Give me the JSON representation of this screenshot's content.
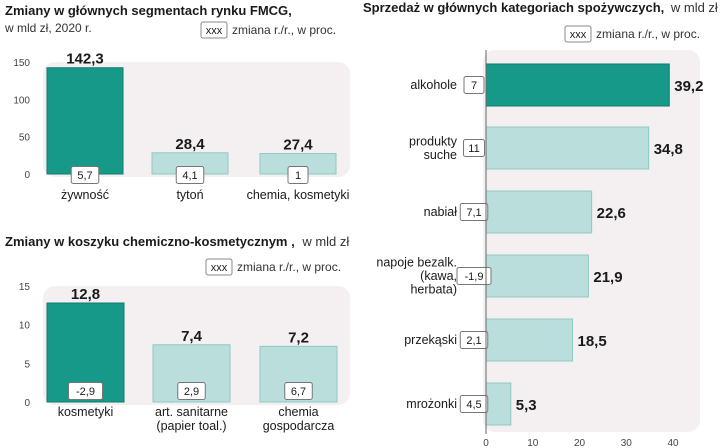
{
  "colors": {
    "highlight": "#17998a",
    "highlight_stroke": "#0e7a6e",
    "normal": "#b9dedb",
    "normal_stroke": "#8fc9c4",
    "plot_bg": "#f4eff1",
    "axis": "#666666"
  },
  "legend": {
    "box_label": "xxx",
    "text": "zmiana r./r., w proc."
  },
  "chart_data": [
    {
      "id": "fmcg",
      "type": "bar",
      "title": "Zmiany w głównych segmentach rynku FMCG,",
      "subtitle": "w mld zł, 2020 r.",
      "categories": [
        "żywność",
        "tytoń",
        "chemia, kosmetyki"
      ],
      "values": [
        142.3,
        28.4,
        27.4
      ],
      "value_labels": [
        "142,3",
        "28,4",
        "27,4"
      ],
      "changes": [
        "5,7",
        "4,1",
        "1"
      ],
      "highlight_index": 0,
      "ylim": [
        0,
        150
      ],
      "yticks": [
        0,
        50,
        100,
        150
      ]
    },
    {
      "id": "chem",
      "type": "bar",
      "title": "Zmiany w koszyku chemiczno-kosmetycznym ,",
      "title_suffix": "w mld zł",
      "categories": [
        "kosmetyki",
        "art. sanitarne|(papier toal.)",
        "chemia|gospodarcza"
      ],
      "values": [
        12.8,
        7.4,
        7.2
      ],
      "value_labels": [
        "12,8",
        "7,4",
        "7,2"
      ],
      "changes": [
        "-2,9",
        "2,9",
        "6,7"
      ],
      "highlight_index": 0,
      "ylim": [
        0,
        15
      ],
      "yticks": [
        0,
        5,
        10,
        15
      ]
    },
    {
      "id": "food",
      "type": "bar",
      "orientation": "horizontal",
      "title": "Sprzedaż w głównych kategoriach spożywczych,",
      "title_suffix": "w mld zł",
      "categories": [
        "alkohole",
        "produkty|suche",
        "nabiał",
        "napoje bezalk.|(kawa,|herbata)",
        "przekąski",
        "mrożonki"
      ],
      "values": [
        39.2,
        34.8,
        22.6,
        21.9,
        18.5,
        5.3
      ],
      "value_labels": [
        "39,2",
        "34,8",
        "22,6",
        "21,9",
        "18,5",
        "5,3"
      ],
      "changes": [
        "7",
        "11",
        "7,1",
        "-1,9",
        "2,1",
        "4,5"
      ],
      "highlight_index": 0,
      "xlim": [
        0,
        40
      ],
      "xticks": [
        0,
        10,
        20,
        30,
        40
      ]
    }
  ]
}
